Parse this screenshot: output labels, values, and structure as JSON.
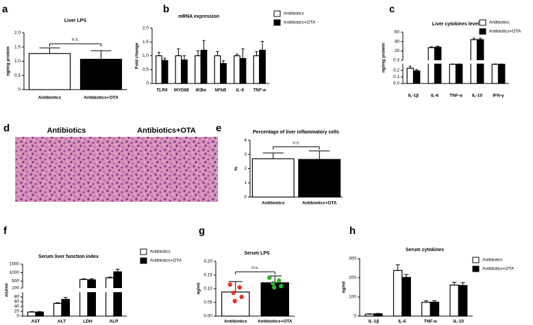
{
  "chart_data": [
    {
      "label": "a",
      "type": "bar",
      "title": "Liver LPS",
      "ylabel": "ng/mg protein",
      "categories": [
        "Antibiotics",
        "Antibiotics+OTA"
      ],
      "values": [
        1.27,
        1.07
      ],
      "errors": [
        0.2,
        0.3
      ],
      "colors": [
        "#ffffff",
        "#000000"
      ],
      "ylim": [
        0,
        2
      ],
      "yticks": [
        0,
        0.5,
        {
          "value": 1,
          "label": "1.0"
        },
        1.5,
        {
          "value": 2,
          "label": "2.0"
        }
      ],
      "annotation": "n.s."
    },
    {
      "label": "b",
      "type": "bar",
      "title": "mRNA expression",
      "ylabel": "Fold change",
      "categories": [
        "TLR4",
        "MYD88",
        "IKBα",
        "NFkB",
        "IL-6",
        "TNF-α"
      ],
      "series": [
        {
          "name": "Antibiotics",
          "color": "#ffffff",
          "values": [
            1,
            1,
            1,
            1,
            1,
            1
          ],
          "errors": [
            0.12,
            0.25,
            0.18,
            0.15,
            0.06,
            0.15
          ]
        },
        {
          "name": "Antibiotics+OTA",
          "color": "#000000",
          "values": [
            0.83,
            0.85,
            1.2,
            0.72,
            0.9,
            1.2
          ],
          "errors": [
            0.08,
            0.15,
            0.35,
            0.1,
            0.35,
            0.32
          ]
        }
      ],
      "ylim": [
        0,
        2
      ],
      "yticks": [
        0,
        0.5,
        {
          "value": 1,
          "label": "1.0"
        },
        1.5,
        {
          "value": 2,
          "label": "2.0"
        }
      ]
    },
    {
      "label": "c",
      "type": "bar",
      "title": "Liver cytokines level",
      "ylabel": "ng/mg protein",
      "categories": [
        "IL-1β",
        "IL-6",
        "TNF-α",
        "IL-10",
        "IFN-γ"
      ],
      "series": [
        {
          "name": "Antibiotics",
          "color": "#ffffff",
          "values": [
            0.23,
            27,
            0.29,
            44,
            0.29
          ],
          "errors": [
            0.03,
            2,
            0.005,
            3,
            0.005
          ]
        },
        {
          "name": "Antibiotics+OTA",
          "color": "#000000",
          "values": [
            0.19,
            28,
            0.29,
            44,
            0.29
          ],
          "errors": [
            0.02,
            2,
            0.005,
            3,
            0.005
          ]
        }
      ],
      "ysegments": [
        {
          "ylim": [
            0,
            0.3
          ],
          "yticks": [
            {
              "value": 0,
              "label": "0.0"
            },
            0.1,
            0.2,
            0.3
          ]
        },
        {
          "ylim": [
            0.3,
            60
          ],
          "yticks": [
            20,
            40,
            60
          ]
        }
      ]
    },
    {
      "label": "d",
      "type": "image",
      "images": [
        {
          "title": "Antibiotics"
        },
        {
          "title": "Antibiotics+OTA"
        }
      ]
    },
    {
      "label": "e",
      "type": "bar",
      "title": "Percentage of liver inflammatory cells",
      "ylabel": "%",
      "categories": [
        "Antibiotics",
        "Antibiotics+OTA"
      ],
      "values": [
        2.7,
        2.65
      ],
      "errors": [
        0.4,
        0.6
      ],
      "colors": [
        "#ffffff",
        "#000000"
      ],
      "ylim": [
        0,
        4
      ],
      "yticks": [
        0,
        1,
        2,
        3,
        4
      ],
      "annotation": "n.s."
    },
    {
      "label": "f",
      "type": "bar",
      "title": "Serum liver function index",
      "ylabel": "mU/ml",
      "categories": [
        "AST",
        "ALT",
        "LDH",
        "ALP"
      ],
      "series": [
        {
          "name": "Antibiotics",
          "color": "#ffffff",
          "values": [
            17,
            53,
            600,
            700
          ],
          "errors": [
            2,
            3,
            50,
            40
          ]
        },
        {
          "name": "Antibiotics+OTA",
          "color": "#000000",
          "values": [
            17,
            70,
            580,
            1050
          ],
          "errors": [
            2,
            8,
            60,
            150
          ]
        }
      ],
      "ysegments": [
        {
          "ylim": [
            0,
            100
          ],
          "yticks": [
            0,
            20,
            40,
            60,
            80,
            100
          ]
        },
        {
          "ylim": [
            100,
            1500
          ],
          "yticks": [
            500,
            1000,
            1500
          ]
        }
      ]
    },
    {
      "label": "g",
      "type": "bar",
      "title": "Serum LPS",
      "ylabel": "ng/ml",
      "categories": [
        "Antibiotics",
        "Antibiotics+OTA"
      ],
      "values": [
        0.088,
        0.122
      ],
      "errors": [
        0.038,
        0.025
      ],
      "colors": [
        "#ffffff",
        "#000000"
      ],
      "points": [
        [
          0.115,
          0.105,
          0.085,
          0.07,
          0.055
        ],
        [
          0.14,
          0.13,
          0.12,
          0.11,
          0.105
        ]
      ],
      "point_colors": [
        "#e8302a",
        "#2ab52a"
      ],
      "ylim": [
        0,
        0.2
      ],
      "yticks": [
        {
          "value": 0,
          "label": "0.00"
        },
        0.05,
        {
          "value": 0.1,
          "label": "0.10"
        },
        0.15,
        {
          "value": 0.2,
          "label": "0.20"
        }
      ],
      "annotation": "n.s."
    },
    {
      "label": "h",
      "type": "bar",
      "title": "Serum cytokines",
      "ylabel": "ng/ml",
      "categories": [
        "IL-1β",
        "IL-6",
        "TNF-α",
        "IL-10"
      ],
      "series": [
        {
          "name": "Antibiotics",
          "color": "#ffffff",
          "values": [
            10,
            238,
            72,
            162
          ],
          "errors": [
            2,
            30,
            8,
            15
          ]
        },
        {
          "name": "Antibiotics+OTA",
          "color": "#000000",
          "values": [
            12,
            202,
            73,
            160
          ],
          "errors": [
            2,
            15,
            8,
            15
          ]
        }
      ],
      "ylim": [
        0,
        300
      ],
      "yticks": [
        0,
        100,
        200,
        300
      ]
    }
  ]
}
